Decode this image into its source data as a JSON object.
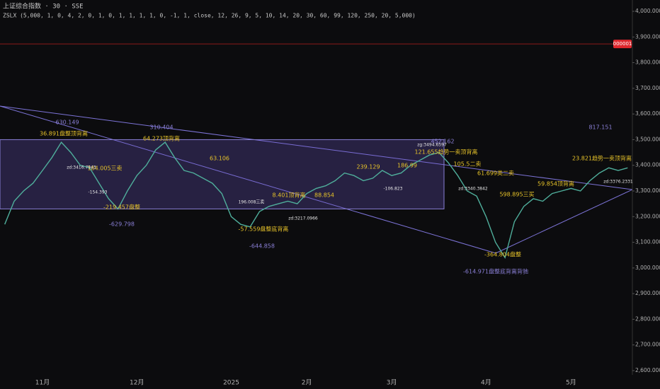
{
  "header": {
    "symbol": "上证综合指数 · 30 · SSE",
    "indicator": "ZSLX (5,000, 1, 0, 4, 2, 0, 1, 0, 1, 1, 1, 1, 0, -1, 1, close, 12, 26, 9, 5, 10, 14, 20, 30, 60, 99, 120, 250, 20, 5,000)"
  },
  "chart_data": {
    "type": "line",
    "categories": [
      null,
      null,
      null,
      null,
      "11月",
      null,
      null,
      null,
      null,
      null,
      null,
      null,
      null,
      null,
      "12月",
      null,
      null,
      null,
      null,
      null,
      null,
      null,
      null,
      null,
      "2025",
      null,
      null,
      null,
      null,
      null,
      null,
      null,
      "2月",
      null,
      null,
      null,
      null,
      null,
      null,
      null,
      null,
      "3月",
      null,
      null,
      null,
      null,
      null,
      null,
      null,
      null,
      null,
      "4月",
      null,
      null,
      null,
      null,
      null,
      null,
      null,
      null,
      "5月",
      null,
      null,
      null,
      null,
      null,
      null
    ],
    "series": [
      {
        "name": "上证综合指数",
        "color": "#4fae9b",
        "values": [
          3170,
          3260,
          3300,
          3330,
          3380,
          3430,
          3490,
          3450,
          3400,
          3390,
          3330,
          3270,
          3230,
          3300,
          3360,
          3400,
          3460,
          3490,
          3430,
          3380,
          3370,
          3350,
          3330,
          3290,
          3200,
          3170,
          3160,
          3220,
          3240,
          3250,
          3260,
          3250,
          3290,
          3310,
          3320,
          3340,
          3370,
          3360,
          3340,
          3350,
          3380,
          3360,
          3370,
          3400,
          3420,
          3440,
          3450,
          3410,
          3360,
          3300,
          3280,
          3200,
          3100,
          3040,
          3180,
          3240,
          3270,
          3260,
          3290,
          3300,
          3310,
          3300,
          3340,
          3370,
          3390,
          3380,
          3390
        ]
      }
    ],
    "ylim": [
      2600,
      4000
    ],
    "yticks": [
      {
        "value": 4000,
        "label": "4,000.0000"
      },
      {
        "value": 3900,
        "label": "3,900.0000"
      },
      {
        "value": 3800,
        "label": "3,800.0000"
      },
      {
        "value": 3700,
        "label": "3,700.0000"
      },
      {
        "value": 3600,
        "label": "3,600.0000"
      },
      {
        "value": 3500,
        "label": "3,500.0000"
      },
      {
        "value": 3400,
        "label": "3,400.0000"
      },
      {
        "value": 3300,
        "label": "3,300.0000"
      },
      {
        "value": 3200,
        "label": "3,200.0000"
      },
      {
        "value": 3100,
        "label": "3,100.0000"
      },
      {
        "value": 3000,
        "label": "3,000.0000"
      },
      {
        "value": 2900,
        "label": "2,900.0000"
      },
      {
        "value": 2800,
        "label": "2,800.0000"
      },
      {
        "value": 2700,
        "label": "2,700.0000"
      },
      {
        "value": 2600,
        "label": "2,600.0000"
      }
    ],
    "grid": false,
    "zone": {
      "low": 3230,
      "high": 3500
    },
    "alert": {
      "level": 3873,
      "label": "000001"
    },
    "annotations": [
      "630.149",
      "36.891盘整顶背离",
      "310.404",
      "64.273顶背离",
      "63.106",
      "-629.798",
      "-644.858",
      "-57.559盘整底背离",
      "452.162",
      "121.655趋势一卖顶背离",
      "105.5二卖",
      "61.699类二卖",
      "-364.804盘整",
      "-614.971盘整底背离背驰",
      "817.151",
      "23.821趋势一卖顶背离",
      "598.895三买",
      "59.854顶背离",
      "184.005三卖",
      "-219.457盘整",
      "-154.393",
      "196.008三卖",
      "8.401顶背离",
      "88.854",
      "239.129",
      "186.99",
      "-106.823",
      "zg:3494.6597",
      "zd:3340.3842",
      "zd:3416.7943",
      "zd:3376.2331",
      "zd:3217.0966"
    ]
  }
}
